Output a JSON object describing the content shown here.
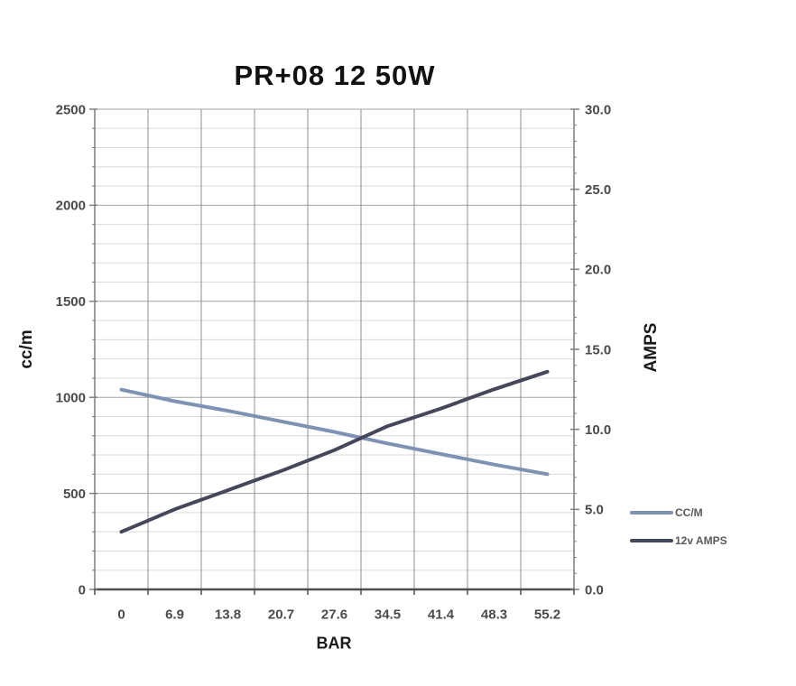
{
  "chart_data": {
    "type": "line",
    "title": "PR+08 12 50W",
    "xlabel": "BAR",
    "ylabel_left": "cc/m",
    "ylabel_right": "AMPS",
    "categories": [
      "0",
      "6.9",
      "13.8",
      "20.7",
      "27.6",
      "34.5",
      "41.4",
      "48.3",
      "55.2"
    ],
    "left_axis": {
      "min": 0,
      "max": 2500,
      "major_step": 500,
      "minor_step": 100,
      "tick_labels": [
        "2500",
        "2000",
        "1500",
        "1000",
        "500",
        "0"
      ]
    },
    "right_axis": {
      "min": 0,
      "max": 30,
      "major_step": 5,
      "minor_step": 1,
      "tick_labels": [
        "30.0",
        "25.0",
        "20.0",
        "15.0",
        "10.0",
        "5.0",
        "0.0"
      ]
    },
    "series": [
      {
        "name": "CC/M",
        "axis": "left",
        "color": "#7e93b3",
        "values": [
          1040,
          980,
          930,
          875,
          820,
          760,
          705,
          650,
          600
        ]
      },
      {
        "name": "12v AMPS",
        "axis": "right",
        "color": "#45475a",
        "values": [
          3.6,
          5.0,
          6.2,
          7.4,
          8.7,
          10.2,
          11.3,
          12.5,
          13.6
        ]
      }
    ],
    "legend": {
      "position": "right",
      "entries": [
        "CC/M",
        "12v AMPS"
      ]
    },
    "grid": {
      "vertical": true,
      "horizontal_major": true,
      "horizontal_minor": true
    }
  },
  "colors": {
    "grid_vertical": "#8f8f8f",
    "grid_major": "#a3a3a3",
    "grid_minor": "#dadada",
    "axis_line": "#7f7f7f",
    "axis_bottom": "#4d4d4d",
    "tick_text": "#4a4a4a",
    "title_text": "#111111",
    "legend_text": "#5a5a5a"
  }
}
